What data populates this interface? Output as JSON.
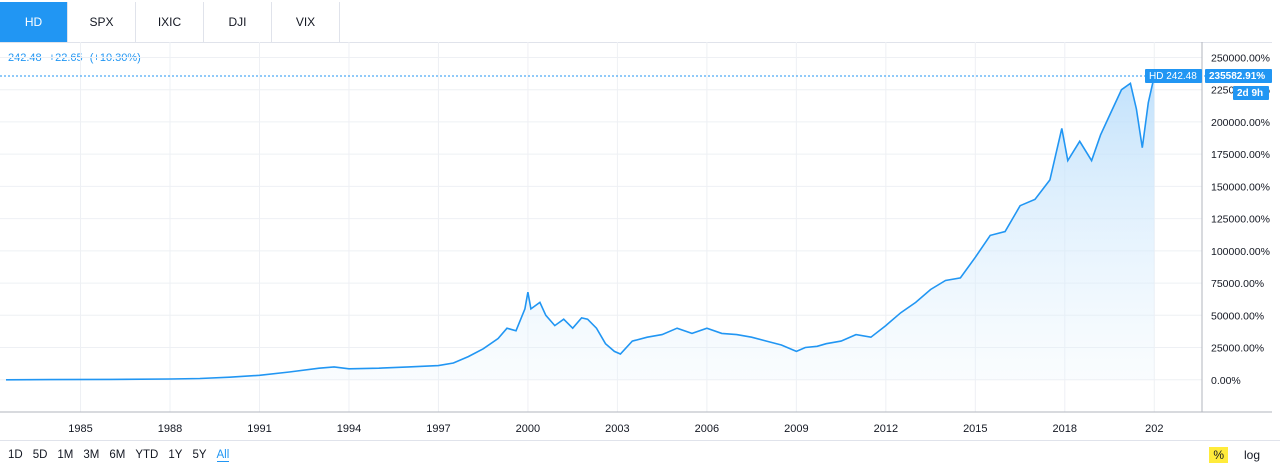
{
  "tabs": [
    "HD",
    "SPX",
    "IXIC",
    "DJI",
    "VIX"
  ],
  "legend": {
    "price": "242.48",
    "change": "+22.65",
    "change_pct": "(+10.30%)"
  },
  "price_tag": {
    "label": "HD 242.48",
    "pct": "235582.91%",
    "countdown": "2d 9h"
  },
  "ranges": [
    "1D",
    "5D",
    "1M",
    "3M",
    "6M",
    "YTD",
    "1Y",
    "5Y",
    "All"
  ],
  "active_range": "All",
  "scale_options": [
    "%",
    "log"
  ],
  "colors": {
    "line": "#2196f3",
    "fill_top": "#bbdefb",
    "grid": "#e0e3eb",
    "active_tab": "#2196f3",
    "highlight": "#ffeb3b"
  },
  "chart_data": {
    "type": "area",
    "title": "",
    "ylabel": "",
    "xlabel": "",
    "y_unit": "%",
    "x_ticks": [
      "1985",
      "1988",
      "1991",
      "1994",
      "1997",
      "2000",
      "2003",
      "2006",
      "2009",
      "2012",
      "2015",
      "2018",
      "202"
    ],
    "y_ticks": [
      "250000.00%",
      "225000.00%",
      "200000.00%",
      "175000.00%",
      "150000.00%",
      "125000.00%",
      "100000.00%",
      "75000.00%",
      "50000.00%",
      "25000.00%",
      "0.00%"
    ],
    "xlim": [
      1982.3,
      2022.6
    ],
    "ylim": [
      -25000,
      262000
    ],
    "grid": true,
    "series": [
      {
        "values": [
          [
            1982.5,
            0
          ],
          [
            1984,
            100
          ],
          [
            1986,
            300
          ],
          [
            1988,
            600
          ],
          [
            1989,
            1000
          ],
          [
            1990,
            2000
          ],
          [
            1991,
            3500
          ],
          [
            1992,
            6000
          ],
          [
            1993,
            9000
          ],
          [
            1993.5,
            10000
          ],
          [
            1994,
            8500
          ],
          [
            1995,
            9000
          ],
          [
            1996,
            10000
          ],
          [
            1997,
            11000
          ],
          [
            1997.5,
            13000
          ],
          [
            1998,
            18000
          ],
          [
            1998.5,
            24000
          ],
          [
            1999,
            32000
          ],
          [
            1999.3,
            40000
          ],
          [
            1999.6,
            38000
          ],
          [
            1999.9,
            55000
          ],
          [
            2000,
            68000
          ],
          [
            2000.1,
            55000
          ],
          [
            2000.4,
            60000
          ],
          [
            2000.6,
            50000
          ],
          [
            2000.9,
            42000
          ],
          [
            2001.2,
            47000
          ],
          [
            2001.5,
            40000
          ],
          [
            2001.8,
            48000
          ],
          [
            2002,
            47000
          ],
          [
            2002.3,
            40000
          ],
          [
            2002.6,
            28000
          ],
          [
            2002.9,
            22000
          ],
          [
            2003.1,
            20000
          ],
          [
            2003.5,
            30000
          ],
          [
            2004,
            33000
          ],
          [
            2004.5,
            35000
          ],
          [
            2005,
            40000
          ],
          [
            2005.5,
            36000
          ],
          [
            2006,
            40000
          ],
          [
            2006.5,
            36000
          ],
          [
            2007,
            35000
          ],
          [
            2007.5,
            33000
          ],
          [
            2008,
            30000
          ],
          [
            2008.5,
            27000
          ],
          [
            2009,
            22000
          ],
          [
            2009.3,
            25000
          ],
          [
            2009.7,
            26000
          ],
          [
            2010,
            28000
          ],
          [
            2010.5,
            30000
          ],
          [
            2011,
            35000
          ],
          [
            2011.5,
            33000
          ],
          [
            2012,
            42000
          ],
          [
            2012.5,
            52000
          ],
          [
            2013,
            60000
          ],
          [
            2013.5,
            70000
          ],
          [
            2014,
            77000
          ],
          [
            2014.5,
            79000
          ],
          [
            2015,
            95000
          ],
          [
            2015.5,
            112000
          ],
          [
            2016,
            115000
          ],
          [
            2016.5,
            135000
          ],
          [
            2017,
            140000
          ],
          [
            2017.5,
            155000
          ],
          [
            2017.9,
            195000
          ],
          [
            2018.1,
            170000
          ],
          [
            2018.5,
            185000
          ],
          [
            2018.9,
            170000
          ],
          [
            2019.2,
            190000
          ],
          [
            2019.5,
            205000
          ],
          [
            2019.9,
            225000
          ],
          [
            2020.2,
            230000
          ],
          [
            2020.4,
            210000
          ],
          [
            2020.6,
            180000
          ],
          [
            2020.8,
            215000
          ],
          [
            2021.0,
            235583
          ]
        ]
      }
    ]
  }
}
